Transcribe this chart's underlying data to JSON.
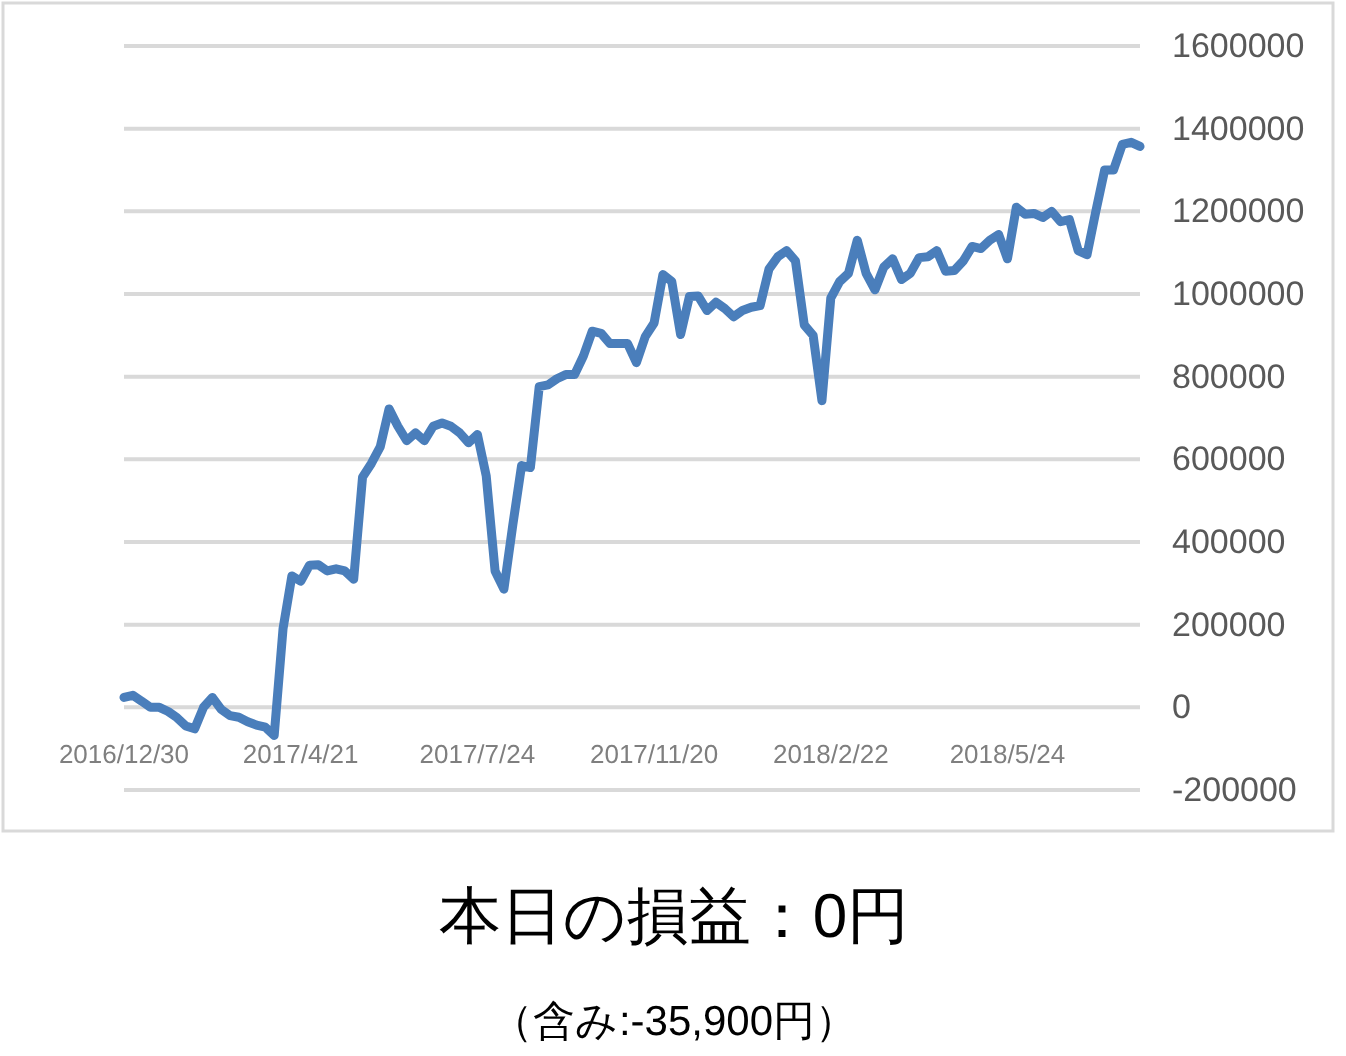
{
  "chart_data": {
    "type": "line",
    "title": "本日の損益：0円",
    "subtitle": "（含み:-35,900円）",
    "categories": [
      "2016/12/30",
      null,
      null,
      null,
      null,
      null,
      null,
      null,
      null,
      null,
      null,
      null,
      null,
      null,
      null,
      null,
      null,
      null,
      null,
      null,
      "2017/4/21",
      null,
      null,
      null,
      null,
      null,
      null,
      null,
      null,
      null,
      null,
      null,
      null,
      null,
      null,
      null,
      null,
      null,
      null,
      null,
      "2017/7/24",
      null,
      null,
      null,
      null,
      null,
      null,
      null,
      null,
      null,
      null,
      null,
      null,
      null,
      null,
      null,
      null,
      null,
      null,
      null,
      "2017/11/20",
      null,
      null,
      null,
      null,
      null,
      null,
      null,
      null,
      null,
      null,
      null,
      null,
      null,
      null,
      null,
      null,
      null,
      null,
      null,
      "2018/2/22",
      null,
      null,
      null,
      null,
      null,
      null,
      null,
      null,
      null,
      null,
      null,
      null,
      null,
      null,
      null,
      null,
      null,
      null,
      null,
      "2018/5/24",
      null,
      null,
      null,
      null,
      null,
      null,
      null,
      null,
      null,
      null,
      null,
      null,
      null,
      null,
      null
    ],
    "values": [
      24000,
      29000,
      15000,
      0,
      0,
      -10000,
      -25000,
      -45000,
      -52000,
      0,
      24000,
      -5000,
      -20000,
      -24000,
      -35000,
      -43000,
      -48000,
      -68000,
      190000,
      318000,
      305000,
      344000,
      345000,
      330000,
      335000,
      330000,
      310000,
      557000,
      590000,
      630000,
      722000,
      680000,
      645000,
      664000,
      645000,
      680000,
      688000,
      680000,
      664000,
      640000,
      660000,
      560000,
      330000,
      286000,
      440000,
      585000,
      580000,
      776000,
      780000,
      795000,
      805000,
      805000,
      850000,
      910000,
      905000,
      880000,
      880000,
      880000,
      834000,
      897000,
      930000,
      1047000,
      1030000,
      902000,
      994000,
      995000,
      960000,
      980000,
      965000,
      945000,
      960000,
      968000,
      972000,
      1060000,
      1090000,
      1105000,
      1080000,
      925000,
      900000,
      742000,
      990000,
      1030000,
      1050000,
      1130000,
      1050000,
      1010000,
      1065000,
      1085000,
      1035000,
      1050000,
      1088000,
      1090000,
      1105000,
      1055000,
      1057000,
      1080000,
      1115000,
      1110000,
      1130000,
      1144000,
      1085000,
      1210000,
      1193000,
      1195000,
      1185000,
      1200000,
      1175000,
      1180000,
      1105000,
      1095000,
      1200000,
      1300000,
      1300000,
      1362000,
      1367000,
      1357000
    ],
    "color": "#4a7ebb",
    "ylim": [
      -200000,
      1600000
    ],
    "yticks": [
      -200000,
      0,
      200000,
      400000,
      600000,
      800000,
      1000000,
      1200000,
      1400000,
      1600000
    ],
    "grid": "y",
    "line_style": "solid",
    "marker": "none"
  }
}
